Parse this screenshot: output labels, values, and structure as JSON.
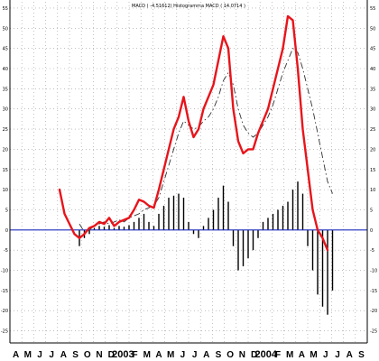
{
  "chart_data": {
    "type": "line",
    "title": "MACD ( -4.51612) Histogramma MACD ( 14.0714 )",
    "xlabel": "",
    "ylabel": "",
    "ylim": [
      -28,
      57
    ],
    "x_range": [
      0,
      72
    ],
    "y_ticks": [
      55,
      50,
      45,
      40,
      35,
      30,
      25,
      20,
      15,
      10,
      5,
      0,
      -5,
      -10,
      -15,
      -20,
      -25
    ],
    "x_tick_labels": [
      "A",
      "M",
      "J",
      "J",
      "A",
      "S",
      "O",
      "N",
      "D",
      "2003",
      "F",
      "M",
      "A",
      "M",
      "J",
      "J",
      "A",
      "S",
      "O",
      "N",
      "D",
      "2004",
      "F",
      "M",
      "A",
      "M",
      "J",
      "J",
      "A",
      "S"
    ],
    "grid": true,
    "colors": {
      "macd": "#e8141b",
      "signal": "#333333",
      "histogram": "#000000",
      "zero_line": "#1f2fbd",
      "grid": "#9a9a9a"
    },
    "series": [
      {
        "name": "MACD",
        "style": "solid-thick",
        "x": [
          10,
          11,
          12,
          13,
          14,
          15,
          16,
          17,
          18,
          19,
          20,
          21,
          22,
          23,
          24,
          25,
          26,
          27,
          28,
          29,
          30,
          31,
          32,
          33,
          34,
          35,
          36,
          37,
          38,
          39,
          40,
          41,
          42,
          43,
          44,
          45,
          46,
          47,
          48,
          49,
          50,
          51,
          52,
          53,
          54,
          55,
          56,
          57,
          58,
          59,
          60,
          61,
          62,
          63,
          64,
          65
        ],
        "y": [
          10,
          4,
          1.5,
          -1,
          -2,
          -1,
          0.5,
          1,
          2,
          1.5,
          3,
          1,
          2,
          2.5,
          3,
          5,
          7.5,
          7,
          6,
          5.5,
          10,
          15,
          20,
          25,
          28,
          33,
          27,
          23,
          25,
          30,
          33,
          36,
          42,
          48,
          45,
          30,
          22,
          19,
          20,
          20,
          24,
          27,
          30,
          35,
          40,
          45,
          53,
          52,
          40,
          25,
          15,
          5,
          0,
          -2,
          -5,
          null
        ]
      },
      {
        "name": "Signal",
        "style": "dashed",
        "x": [
          14,
          15,
          16,
          17,
          18,
          19,
          20,
          21,
          22,
          23,
          24,
          25,
          26,
          27,
          28,
          29,
          30,
          31,
          32,
          33,
          34,
          35,
          36,
          37,
          38,
          39,
          40,
          41,
          42,
          43,
          44,
          45,
          46,
          47,
          48,
          49,
          50,
          51,
          52,
          53,
          54,
          55,
          56,
          57,
          58,
          59,
          60,
          61,
          62,
          63,
          64,
          65
        ],
        "y": [
          1.5,
          -0.5,
          0,
          1,
          1.5,
          2,
          1.5,
          2,
          2.5,
          2,
          3,
          3.5,
          4,
          5,
          5.5,
          6,
          8,
          12,
          16,
          20,
          24,
          27,
          26,
          25,
          25.5,
          27,
          28,
          30,
          33,
          37,
          39,
          36,
          30,
          26,
          24,
          23,
          24,
          26,
          28,
          31,
          35,
          39,
          42,
          45,
          44,
          40,
          35,
          30,
          24,
          18,
          12,
          9
        ]
      },
      {
        "name": "Histogramma MACD",
        "style": "bars",
        "x": [
          14,
          15,
          16,
          17,
          18,
          19,
          20,
          21,
          22,
          23,
          24,
          25,
          26,
          27,
          28,
          29,
          30,
          31,
          32,
          33,
          34,
          35,
          36,
          37,
          38,
          39,
          40,
          41,
          42,
          43,
          44,
          45,
          46,
          47,
          48,
          49,
          50,
          51,
          52,
          53,
          54,
          55,
          56,
          57,
          58,
          59,
          60,
          61,
          62,
          63,
          64,
          65
        ],
        "y": [
          -4,
          -2,
          -1,
          0.5,
          1,
          0.8,
          1.2,
          0.5,
          1,
          0.8,
          1.2,
          2,
          3,
          4,
          2,
          1,
          4,
          6,
          8,
          8.5,
          9,
          8,
          2,
          -1,
          -2,
          1,
          3,
          5,
          8,
          11,
          7,
          -4,
          -10,
          -9,
          -7,
          -5,
          -2,
          2,
          3,
          4,
          5,
          6,
          7,
          10,
          12,
          9,
          -4,
          -10,
          -16,
          -19,
          -21,
          -15
        ]
      }
    ]
  }
}
